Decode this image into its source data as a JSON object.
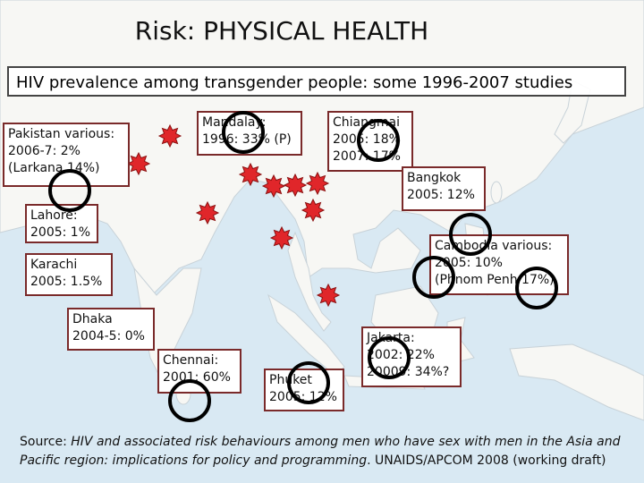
{
  "title": "Risk: PHYSICAL HEALTH",
  "subtitle": "HIV prevalence among transgender people: some 1996-2007 studies",
  "labels": {
    "pakistan": [
      "Pakistan various:",
      "2006-7: 2%",
      "(Larkana 14%)"
    ],
    "lahore": [
      "Lahore:",
      "2005: 1%"
    ],
    "karachi": [
      "Karachi",
      "2005: 1.5%"
    ],
    "dhaka": [
      "Dhaka",
      "2004-5: 0%"
    ],
    "mandalay": [
      "Mandalay:",
      "1996: 33% (P)"
    ],
    "chiangmai": [
      "Chiangmai",
      "2005: 18%",
      "2007: 17%"
    ],
    "bangkok": [
      "Bangkok",
      "2005: 12%"
    ],
    "cambodia": [
      "Cambodia various:",
      "2005: 10%",
      "(Phnom Penh 17%)"
    ],
    "chennai": [
      "Chennai:",
      "2001: 60%"
    ],
    "phuket": [
      "Phuket",
      "2005: 12%"
    ],
    "jakarta": [
      "Jakarta:",
      "2002: 22%",
      "20009: 34%?"
    ]
  },
  "source": {
    "prefix": "Source: ",
    "italic": "HIV and associated risk behaviours among men who have sex with men in the Asia and Pacific region: implications for policy and programming",
    "suffix": ". UNAIDS/APCOM 2008 (working draft)"
  },
  "colors": {
    "sea": "#d9e9f3",
    "land": "#f7f7f4",
    "marker": "#e0262a",
    "circle": "#000000"
  }
}
